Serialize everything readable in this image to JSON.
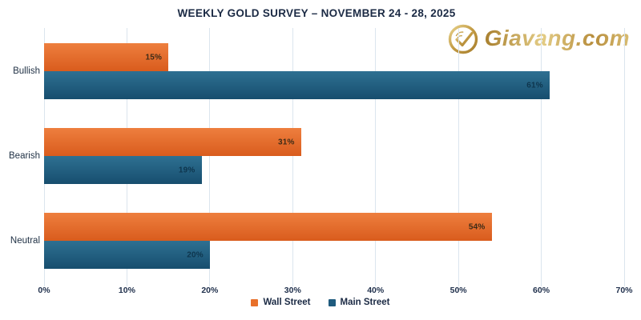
{
  "header": {
    "title": "WEEKLY GOLD SURVEY – NOVEMBER 24 - 28, 2025",
    "title_color": "#1b2a44"
  },
  "branding": {
    "logo_text": "Giavang.com",
    "logo_color": "#c59c4a",
    "icon": "check-circle-icon"
  },
  "chart_data": {
    "type": "bar",
    "orientation": "horizontal",
    "title": "WEEKLY GOLD SURVEY – NOVEMBER 24 - 28, 2025",
    "categories": [
      "Bullish",
      "Bearish",
      "Neutral"
    ],
    "series": [
      {
        "name": "Wall Street",
        "values": [
          15,
          31,
          54
        ],
        "color": "#e8702a",
        "color_top": "#ee7f3e",
        "color_bottom": "#d95c1d",
        "label_color": "#3d2b17"
      },
      {
        "name": "Main Street",
        "values": [
          61,
          19,
          20
        ],
        "color": "#1f5b7e",
        "color_top": "#2e7092",
        "color_bottom": "#174e6e",
        "label_color": "#0e354d"
      }
    ],
    "value_labels": [
      [
        "15%",
        "31%",
        "54%"
      ],
      [
        "61%",
        "19%",
        "20%"
      ]
    ],
    "value_suffix": "%",
    "xlim": [
      0,
      70
    ],
    "x_ticks": [
      0,
      10,
      20,
      30,
      40,
      50,
      60,
      70
    ],
    "x_tick_labels": [
      "0%",
      "10%",
      "20%",
      "30%",
      "40%",
      "50%",
      "60%",
      "70%"
    ],
    "grid": "vertical",
    "gridline_color": "#dbe5ee",
    "axis_label_color": "#21314d",
    "legend_position": "bottom"
  }
}
